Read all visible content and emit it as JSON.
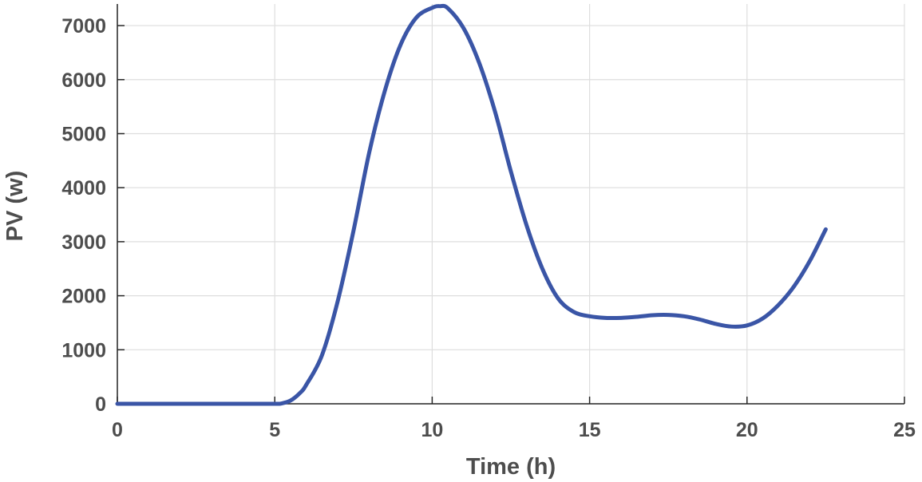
{
  "chart_data": {
    "type": "line",
    "xlabel": "Time (h)",
    "ylabel": "PV (w)",
    "xlim": [
      0,
      25
    ],
    "ylim": [
      0,
      7400
    ],
    "xticks": [
      0,
      5,
      10,
      15,
      20,
      25
    ],
    "yticks": [
      0,
      1000,
      2000,
      3000,
      4000,
      5000,
      6000,
      7000
    ],
    "grid": true,
    "colors": {
      "series": "#3a55a6",
      "grid": "#dedede",
      "axis": "#262626",
      "text": "#4d4d4d"
    },
    "series": [
      {
        "x": [
          0,
          1,
          2,
          3,
          4,
          5,
          5.2,
          5.5,
          5.8,
          6,
          6.5,
          7,
          7.5,
          8,
          8.5,
          9,
          9.5,
          10,
          10.25,
          10.5,
          11,
          11.5,
          12,
          12.5,
          13,
          13.5,
          14,
          14.5,
          15,
          15.5,
          16,
          16.5,
          17,
          17.5,
          18,
          18.5,
          19,
          19.5,
          20,
          20.5,
          21,
          21.5,
          22,
          22.5
        ],
        "y": [
          0,
          0,
          0,
          0,
          0,
          0,
          5,
          60,
          200,
          350,
          900,
          1900,
          3200,
          4650,
          5800,
          6650,
          7150,
          7330,
          7360,
          7320,
          6950,
          6300,
          5400,
          4300,
          3300,
          2500,
          1950,
          1700,
          1620,
          1590,
          1590,
          1610,
          1640,
          1645,
          1620,
          1560,
          1480,
          1430,
          1450,
          1580,
          1830,
          2180,
          2650,
          3230
        ]
      }
    ]
  }
}
